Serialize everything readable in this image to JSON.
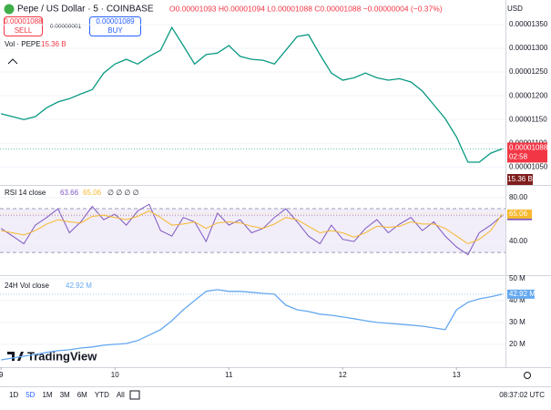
{
  "ui": {
    "symbol": "Pepe / US Dollar · 5 · COINBASE",
    "ohlc": "O0.00001093 H0.00001094 L0.00001088 C0.00001088 −0.00000004 (−0.37%)",
    "currency": "USD",
    "sell_price": "0.00001088",
    "sell": "SELL",
    "spread": "0.00000001",
    "buy_price": "0.00001089",
    "buy": "BUY",
    "vol_label": "Vol · PEPE",
    "vol_value": "15.36 B",
    "rsi_extra": "∅ ∅ ∅ ∅",
    "logo": "TradingView",
    "ranges": [
      "1D",
      "5D",
      "1M",
      "3M",
      "6M",
      "YTD",
      "All"
    ],
    "clock": "08:37:02 UTC"
  },
  "chart_data": [
    {
      "type": "line",
      "color": "#089981",
      "xlim": [
        8.99,
        13.43
      ],
      "ylim": [
        1.012e-05,
        1.402e-05
      ],
      "yticks": [
        {
          "value": 1.35e-05,
          "label": "0.00001350"
        },
        {
          "value": 1.3e-05,
          "label": "0.00001300"
        },
        {
          "value": 1.25e-05,
          "label": "0.00001250"
        },
        {
          "value": 1.2e-05,
          "label": "0.00001200"
        },
        {
          "value": 1.15e-05,
          "label": "0.00001150"
        },
        {
          "value": 1.1e-05,
          "label": "0.00001100"
        },
        {
          "value": 1.05e-05,
          "label": "0.00001050"
        }
      ],
      "x": [
        9.0,
        9.1,
        9.2,
        9.3,
        9.4,
        9.5,
        9.6,
        9.7,
        9.8,
        9.9,
        10.0,
        10.1,
        10.2,
        10.3,
        10.4,
        10.5,
        10.6,
        10.7,
        10.8,
        10.9,
        11.0,
        11.1,
        11.2,
        11.3,
        11.4,
        11.5,
        11.6,
        11.7,
        11.8,
        11.9,
        12.0,
        12.1,
        12.2,
        12.3,
        12.4,
        12.5,
        12.6,
        12.7,
        12.8,
        12.9,
        13.0,
        13.1,
        13.2,
        13.3,
        13.4
      ],
      "values": [
        1.162e-05,
        1.156e-05,
        1.15e-05,
        1.156e-05,
        1.175e-05,
        1.187e-05,
        1.194e-05,
        1.204e-05,
        1.213e-05,
        1.248e-05,
        1.267e-05,
        1.277e-05,
        1.267e-05,
        1.283e-05,
        1.296e-05,
        1.344e-05,
        1.306e-05,
        1.267e-05,
        1.287e-05,
        1.29e-05,
        1.306e-05,
        1.283e-05,
        1.277e-05,
        1.275e-05,
        1.267e-05,
        1.296e-05,
        1.325e-05,
        1.329e-05,
        1.287e-05,
        1.248e-05,
        1.233e-05,
        1.238e-05,
        1.248e-05,
        1.238e-05,
        1.233e-05,
        1.236e-05,
        1.229e-05,
        1.21e-05,
        1.181e-05,
        1.152e-05,
        1.113e-05,
        1.06e-05,
        1.06e-05,
        1.079e-05,
        1.088e-05
      ],
      "last_label": "0.00001088",
      "countdown": "02:58"
    },
    {
      "type": "line",
      "title": "RSI 14 close",
      "xlim": [
        8.99,
        13.43
      ],
      "ylim": [
        11,
        90
      ],
      "band": [
        30,
        70
      ],
      "yticks": [
        {
          "value": 80,
          "label": "80.00"
        },
        {
          "value": 40,
          "label": "40.00"
        }
      ],
      "x": [
        9.0,
        9.1,
        9.2,
        9.3,
        9.4,
        9.5,
        9.6,
        9.7,
        9.8,
        9.9,
        10.0,
        10.1,
        10.2,
        10.3,
        10.4,
        10.5,
        10.6,
        10.7,
        10.8,
        10.9,
        11.0,
        11.1,
        11.2,
        11.3,
        11.4,
        11.5,
        11.6,
        11.7,
        11.8,
        11.9,
        12.0,
        12.1,
        12.2,
        12.3,
        12.4,
        12.5,
        12.6,
        12.7,
        12.8,
        12.9,
        13.0,
        13.1,
        13.2,
        13.3,
        13.4
      ],
      "series": [
        {
          "color": "#7e57c2",
          "values": [
            52,
            45,
            38,
            55,
            62,
            70,
            48,
            58,
            72,
            60,
            65,
            55,
            68,
            74,
            50,
            45,
            62,
            58,
            40,
            66,
            55,
            60,
            48,
            52,
            62,
            70,
            58,
            45,
            38,
            55,
            42,
            40,
            52,
            60,
            48,
            56,
            62,
            50,
            58,
            45,
            35,
            28,
            48,
            55,
            63.66
          ]
        },
        {
          "color": "#f5b82e",
          "values": [
            50,
            48,
            46,
            50,
            56,
            60,
            58,
            57,
            63,
            64,
            62,
            60,
            63,
            68,
            62,
            55,
            56,
            58,
            52,
            57,
            58,
            57,
            54,
            52,
            56,
            62,
            60,
            54,
            48,
            50,
            48,
            44,
            48,
            54,
            53,
            54,
            58,
            56,
            56,
            52,
            45,
            38,
            42,
            50,
            65.06
          ]
        }
      ]
    },
    {
      "type": "line",
      "title": "24H Vol close",
      "color": "#64a8f0",
      "xlim": [
        8.99,
        13.43
      ],
      "ylim": [
        10.8,
        51.2
      ],
      "yticks": [
        {
          "value": 50,
          "label": "50 M"
        },
        {
          "value": 40,
          "label": "40 M"
        },
        {
          "value": 30,
          "label": "30 M"
        },
        {
          "value": 20,
          "label": "20 M"
        }
      ],
      "xticks": [
        9,
        10,
        11,
        12,
        13
      ],
      "x": [
        9.0,
        9.1,
        9.2,
        9.3,
        9.4,
        9.5,
        9.6,
        9.7,
        9.8,
        9.9,
        10.0,
        10.1,
        10.2,
        10.3,
        10.4,
        10.5,
        10.6,
        10.7,
        10.8,
        10.9,
        11.0,
        11.1,
        11.2,
        11.3,
        11.4,
        11.5,
        11.6,
        11.7,
        11.8,
        11.9,
        12.0,
        12.1,
        12.2,
        12.3,
        12.4,
        12.5,
        12.6,
        12.7,
        12.8,
        12.9,
        13.0,
        13.1,
        13.2,
        13.3,
        13.4
      ],
      "values": [
        12.9,
        13.7,
        14.6,
        15.4,
        16.3,
        17.1,
        17.5,
        18.3,
        18.8,
        19.6,
        20,
        20.4,
        21.7,
        24.2,
        26.7,
        30.8,
        35.8,
        40,
        44.2,
        45,
        44.2,
        44.2,
        43.8,
        43.3,
        42.92,
        37.9,
        35.8,
        35,
        33.8,
        33.3,
        32.5,
        31.7,
        30.8,
        30,
        29.6,
        29.2,
        28.8,
        28.3,
        27.5,
        26.7,
        35.8,
        39.2,
        40.8,
        41.7,
        42.92
      ],
      "last_label": "42.92 M"
    }
  ]
}
